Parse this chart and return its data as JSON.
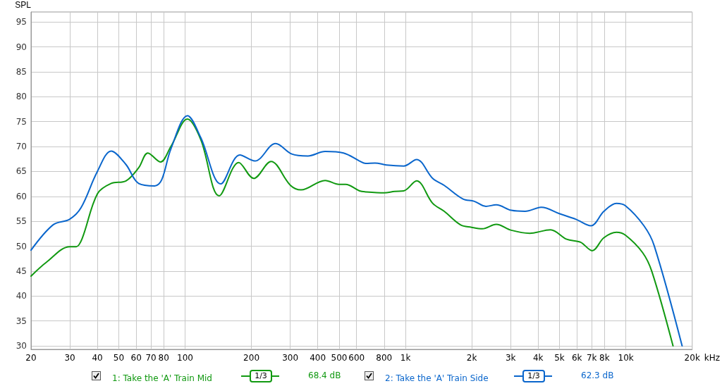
{
  "chart_data": {
    "type": "line",
    "ylabel": "SPL",
    "xlim": [
      20,
      20000
    ],
    "ylim": [
      29.3,
      97
    ],
    "log": "x",
    "xticks": [
      20,
      30,
      40,
      50,
      60,
      70,
      80,
      100,
      200,
      300,
      400,
      500,
      600,
      800,
      {
        "value": 1000,
        "label": "1k"
      },
      {
        "value": 2000,
        "label": "2k"
      },
      {
        "value": 3000,
        "label": "3k"
      },
      {
        "value": 4000,
        "label": "4k"
      },
      {
        "value": 5000,
        "label": "5k"
      },
      {
        "value": 6000,
        "label": "6k"
      },
      {
        "value": 7000,
        "label": "7k"
      },
      {
        "value": 8000,
        "label": "8k"
      },
      {
        "value": 10000,
        "label": "10k"
      },
      {
        "value": 20000,
        "label": "20k"
      }
    ],
    "xlabel": "kHz",
    "yticks": [
      30,
      35,
      40,
      45,
      50,
      55,
      60,
      65,
      70,
      75,
      80,
      85,
      90,
      95
    ],
    "grid": true,
    "legend": "bottom",
    "marker": "none",
    "line_style": "solid",
    "annotations": [
      "1/3",
      "68.4 dB",
      "1/3",
      "62.3 dB"
    ],
    "series": [
      {
        "name": "1: Take the 'A' Train Mid",
        "color": "#119911",
        "x": [
          20,
          23.5,
          30,
          32.1,
          34.1,
          40,
          46.2,
          53.9,
          61.5,
          67.8,
          77.3,
          86.2,
          102.5,
          117.8,
          142.8,
          175.2,
          204.9,
          245.4,
          301,
          335.6,
          432,
          499,
          535,
          619,
          660,
          801,
          893,
          983,
          1123,
          1329,
          1500,
          1776,
          1993,
          2233,
          2582,
          3022,
          3665,
          4550,
          5390,
          6230,
          7035,
          7950,
          9060,
          9970,
          11920,
          13130,
          16370
        ],
        "values": [
          44.0,
          46.8,
          49.9,
          49.9,
          51.5,
          60.5,
          62.6,
          63.1,
          65.7,
          68.7,
          66.9,
          70.0,
          75.5,
          71.4,
          60.1,
          66.8,
          63.6,
          67.0,
          62.2,
          61.3,
          63.2,
          62.4,
          62.4,
          61.1,
          60.9,
          60.7,
          61.0,
          61.1,
          63.1,
          58.6,
          57.0,
          54.3,
          53.8,
          53.5,
          54.4,
          53.2,
          52.6,
          53.3,
          51.4,
          50.8,
          49.1,
          51.7,
          52.8,
          52.2,
          48.7,
          44.9,
          30.0
        ]
      },
      {
        "name": "2: Take the 'A' Train Side",
        "color": "#0a66cc",
        "x": [
          20,
          25.2,
          29.9,
          33.7,
          40,
          46.2,
          53.9,
          61.5,
          72.8,
          78.3,
          86.2,
          102.6,
          117.8,
          145.2,
          177.3,
          207.4,
          257.5,
          304.8,
          360.6,
          432,
          523.5,
          619,
          660,
          727,
          820,
          983,
          1123,
          1329,
          1500,
          1820,
          2054,
          2316,
          2582,
          3022,
          3490,
          4136,
          5014,
          5940,
          6940,
          7950,
          9060,
          9970,
          12080,
          13450,
          18000
        ],
        "values": [
          49.2,
          54.3,
          55.4,
          57.7,
          65.0,
          69.1,
          66.4,
          62.6,
          62.1,
          63.3,
          69.5,
          76.2,
          71.8,
          62.5,
          68.3,
          67.1,
          70.6,
          68.5,
          68.1,
          69.0,
          68.7,
          67.1,
          66.6,
          66.7,
          66.3,
          66.1,
          67.4,
          63.6,
          62.2,
          59.5,
          59.0,
          58.0,
          58.3,
          57.2,
          57.0,
          57.8,
          56.5,
          55.4,
          54.1,
          57.0,
          58.6,
          58.1,
          54.1,
          50.1,
          30.0
        ]
      }
    ]
  }
}
